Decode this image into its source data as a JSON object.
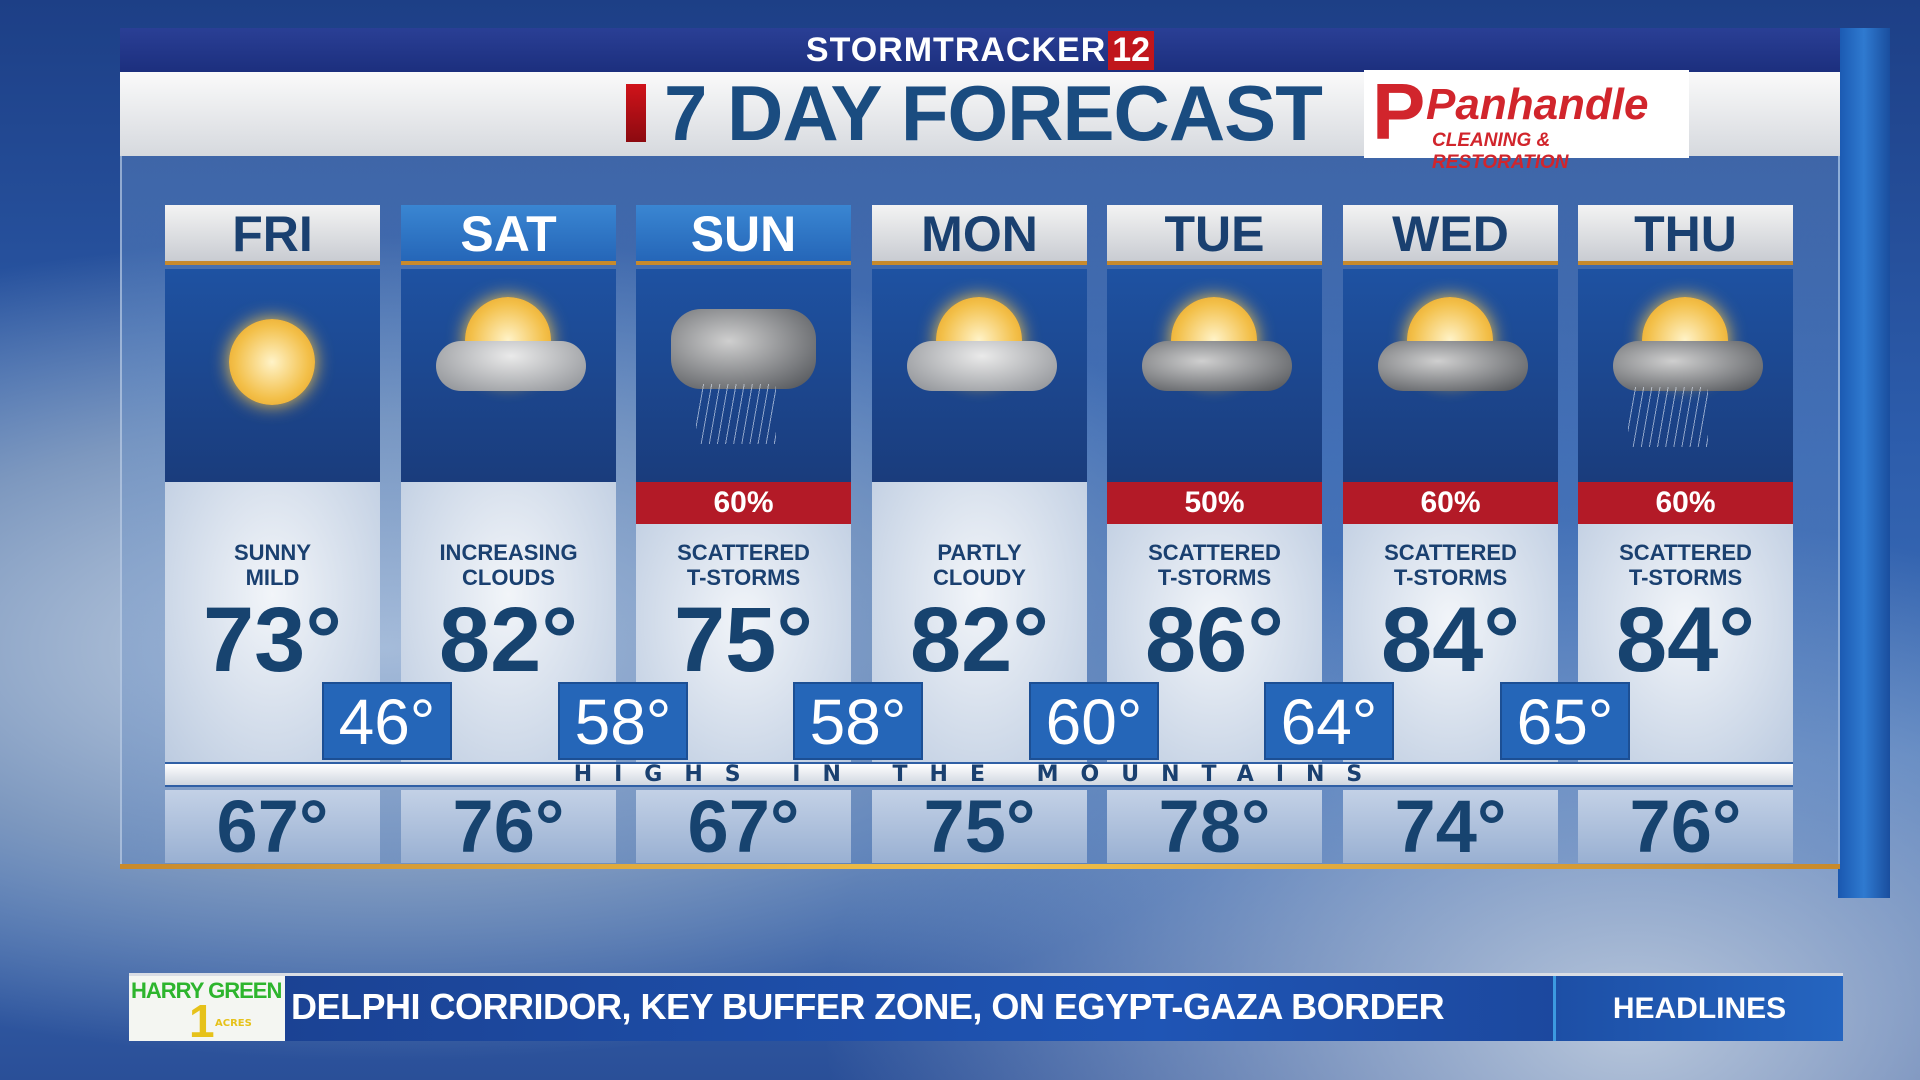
{
  "brand": {
    "station": "STORMTRACKER",
    "number": "12"
  },
  "title": "7 DAY FORECAST",
  "sponsor": {
    "initial": "P",
    "name": "Panhandle",
    "tagline": "CLEANING & RESTORATION"
  },
  "days": [
    {
      "day": "FRI",
      "icon": "sunny-icon",
      "precip": null,
      "desc1": "SUNNY",
      "desc2": "MILD",
      "high": "73°",
      "low": "46°",
      "mountain_high": "67°",
      "weekend": false
    },
    {
      "day": "SAT",
      "icon": "partly-cloudy-icon",
      "precip": null,
      "desc1": "INCREASING",
      "desc2": "CLOUDS",
      "high": "82°",
      "low": "58°",
      "mountain_high": "76°",
      "weekend": true
    },
    {
      "day": "SUN",
      "icon": "thunderstorm-icon",
      "precip": "60%",
      "desc1": "SCATTERED",
      "desc2": "T-STORMS",
      "high": "75°",
      "low": "58°",
      "mountain_high": "67°",
      "weekend": true
    },
    {
      "day": "MON",
      "icon": "partly-cloudy-icon",
      "precip": null,
      "desc1": "PARTLY",
      "desc2": "CLOUDY",
      "high": "82°",
      "low": "60°",
      "mountain_high": "75°",
      "weekend": false
    },
    {
      "day": "TUE",
      "icon": "sun-storm-icon",
      "precip": "50%",
      "desc1": "SCATTERED",
      "desc2": "T-STORMS",
      "high": "86°",
      "low": "64°",
      "mountain_high": "78°",
      "weekend": false
    },
    {
      "day": "WED",
      "icon": "sun-storm-icon",
      "precip": "60%",
      "desc1": "SCATTERED",
      "desc2": "T-STORMS",
      "high": "84°",
      "low": "65°",
      "mountain_high": "74°",
      "weekend": false
    },
    {
      "day": "THU",
      "icon": "sun-storm-rain-icon",
      "precip": "60%",
      "desc1": "SCATTERED",
      "desc2": "T-STORMS",
      "high": "84°",
      "low": null,
      "mountain_high": "76°",
      "weekend": false
    }
  ],
  "mountain_label": "HIGHS IN THE MOUNTAINS",
  "ticker": {
    "sponsor_line1": "HARRY GREEN",
    "sponsor_number": "1",
    "sponsor_line2": "ACRES",
    "text": "DELPHI CORRIDOR, KEY BUFFER ZONE, ON EGYPT-GAZA BORDER",
    "section": "HEADLINES"
  },
  "colors": {
    "title": "#1a4c80",
    "precip": "#b31a27",
    "weekend_header": "#2566b8",
    "sponsor": "#d1252c"
  }
}
